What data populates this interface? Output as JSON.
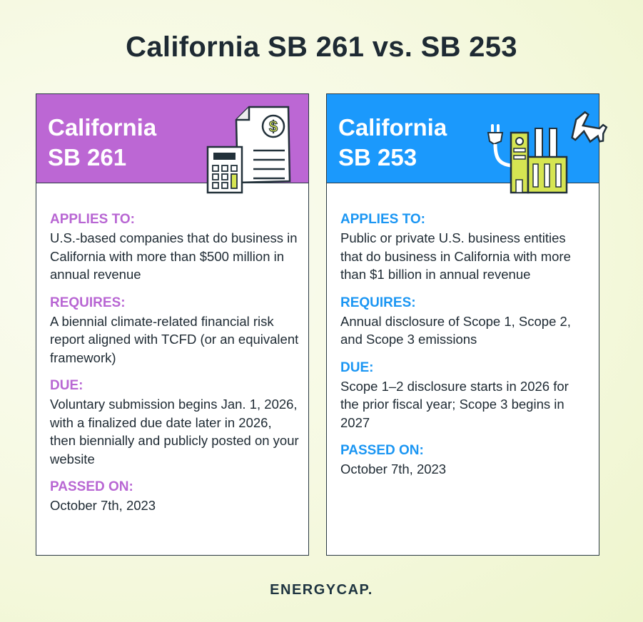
{
  "title": "California SB 261 vs. SB 253",
  "colors": {
    "sb261": "#bc67d4",
    "sb253": "#1b99fc",
    "accent_icon": "#d6e552",
    "text": "#1e2a33"
  },
  "cards": [
    {
      "title_line1": "California",
      "title_line2": "SB 261",
      "icon": "invoice-calculator-icon",
      "sections": [
        {
          "label": "APPLIES TO:",
          "text": "U.S.-based companies that do business in California with more than $500 million in annual revenue"
        },
        {
          "label": "REQUIRES:",
          "text": "A biennial climate-related financial risk report aligned with TCFD (or an equivalent framework)"
        },
        {
          "label": "DUE:",
          "text": "Voluntary submission begins Jan. 1, 2026, with a finalized due date later in 2026, then biennially and publicly posted on your website"
        },
        {
          "label": "PASSED ON:",
          "text": "October 7th, 2023"
        }
      ]
    },
    {
      "title_line1": "California",
      "title_line2": "SB 253",
      "icon": "factory-plug-airplane-icon",
      "sections": [
        {
          "label": "APPLIES TO:",
          "text": "Public or private U.S. business entities that do business in California with more than $1 billion in annual revenue"
        },
        {
          "label": "REQUIRES:",
          "text": "Annual disclosure of Scope 1, Scope 2, and Scope 3 emissions"
        },
        {
          "label": "DUE:",
          "text": "Scope 1–2 disclosure starts in 2026 for the prior fiscal year; Scope 3 begins in 2027"
        },
        {
          "label": "PASSED ON:",
          "text": "October 7th, 2023"
        }
      ]
    }
  ],
  "logo": "ENERGYCAP."
}
